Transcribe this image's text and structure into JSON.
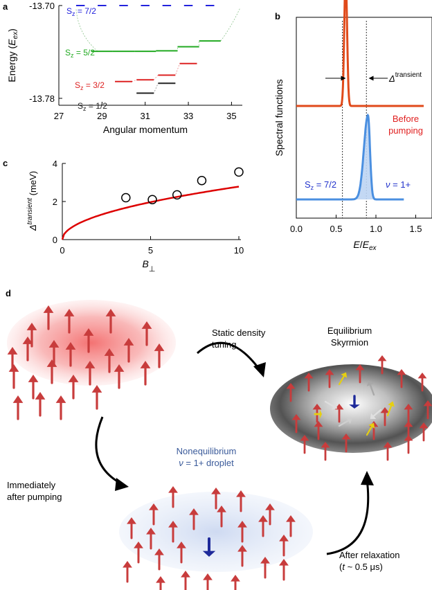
{
  "panel_labels": {
    "a": "a",
    "b": "b",
    "c": "c",
    "d": "d"
  },
  "chart_data": [
    {
      "panel": "a",
      "type": "line",
      "ylabel_main": "Energy (",
      "ylabel_italic": "E",
      "ylabel_sub": "ex",
      "ylabel_close": ")",
      "xlabel": "Angular momentum",
      "ylim": [
        -13.78,
        -13.7
      ],
      "xlim": [
        27,
        35.5
      ],
      "y_ticks": [
        "-13.70",
        "-13.78"
      ],
      "x_ticks": [
        "27",
        "29",
        "31",
        "33",
        "35"
      ],
      "levels": [
        {
          "name": "S",
          "sub": "z",
          "value": " = 7/2",
          "color": "#2222dd",
          "segments": [
            [
              27.8,
              28.2,
              -13.7
            ],
            [
              28.8,
              29.2,
              -13.7
            ],
            [
              29.8,
              30.2,
              -13.7
            ],
            [
              30.8,
              31.2,
              -13.7
            ],
            [
              31.8,
              32.2,
              -13.7
            ],
            [
              32.8,
              33.2,
              -13.7
            ],
            [
              33.8,
              34.2,
              -13.7
            ]
          ]
        },
        {
          "name": "S",
          "sub": "z",
          "value": " = 5/2",
          "color": "#22aa22",
          "segments": [
            [
              28.5,
              29.5,
              -13.7395
            ],
            [
              29.5,
              30.5,
              -13.7395
            ],
            [
              30.5,
              31.5,
              -13.7395
            ],
            [
              31.5,
              32.5,
              -13.739
            ],
            [
              32.5,
              33.5,
              -13.7355
            ],
            [
              33.5,
              34.5,
              -13.7305
            ]
          ]
        },
        {
          "name": "S",
          "sub": "z",
          "value": " = 3/2",
          "color": "#dd2222",
          "segments": [
            [
              29.6,
              30.4,
              -13.7655
            ],
            [
              30.6,
              31.4,
              -13.764
            ],
            [
              31.6,
              32.4,
              -13.76
            ],
            [
              32.6,
              33.4,
              -13.75
            ]
          ]
        },
        {
          "name": "S",
          "sub": "z",
          "value": " = 1/2",
          "color": "#222222",
          "segments": [
            [
              30.6,
              31.4,
              -13.7755
            ],
            [
              31.6,
              32.4,
              -13.767
            ]
          ]
        }
      ]
    },
    {
      "panel": "b",
      "type": "line",
      "ylabel": "Spectral functions",
      "xlabel_italic": "E",
      "xlabel_mid": "/",
      "xlabel_italic2": "E",
      "xlabel_sub": "ex",
      "x_ticks": [
        "0.0",
        "0.5",
        "1.0",
        "1.5"
      ],
      "xlim": [
        0.0,
        1.6
      ],
      "annotation_delta": "Δ",
      "annotation_sup": "transient",
      "series": [
        {
          "name_line1": "Before",
          "name_line2": "pumping",
          "color": "#e04a1a",
          "baseline": 0.6,
          "center": 0.62,
          "height": 1.0,
          "width": 0.025
        },
        {
          "name_prefix": "S",
          "name_sub": "z",
          "name_value": " = 7/2",
          "color": "#4a8fe0",
          "extra_label_nu": "ν",
          "extra_label_rest": " = 1+",
          "baseline": 0.1,
          "center": 0.9,
          "height": 0.45,
          "width": 0.06
        }
      ],
      "vlines": [
        0.58,
        0.88
      ]
    },
    {
      "panel": "c",
      "type": "scatter",
      "ylabel_delta": "Δ",
      "ylabel_sup": "transient",
      "ylabel_unit": " (meV)",
      "xlabel": "B",
      "xlabel_sub": "⊥",
      "xlim": [
        0,
        10
      ],
      "ylim": [
        0,
        4
      ],
      "x_ticks": [
        "0",
        "5",
        "10"
      ],
      "y_ticks": [
        "0",
        "2",
        "4"
      ],
      "points": [
        [
          3.6,
          2.2
        ],
        [
          5.1,
          2.1
        ],
        [
          6.5,
          2.35
        ],
        [
          7.9,
          3.1
        ],
        [
          10.0,
          3.55
        ]
      ],
      "fit_color": "#dd0000"
    }
  ],
  "panel_d": {
    "static_line1": "Static density",
    "static_line2": "tuning",
    "equilibrium_line1": "Equilibrium",
    "equilibrium_line2": "Skyrmion",
    "noneq_line1": "Nonequilibrium",
    "noneq_nu": "ν",
    "noneq_rest": " = 1+ droplet",
    "immediately_line1": "Immediately",
    "immediately_line2": "after pumping",
    "relax_line1": "After relaxation",
    "relax_line2_open": "(",
    "relax_t": "t",
    "relax_line2_rest": " ~ 0.5 μs)",
    "arrow_color": "#c83c3c",
    "flip_color": "#1e2a9a",
    "yellow_color": "#e6cf10"
  }
}
